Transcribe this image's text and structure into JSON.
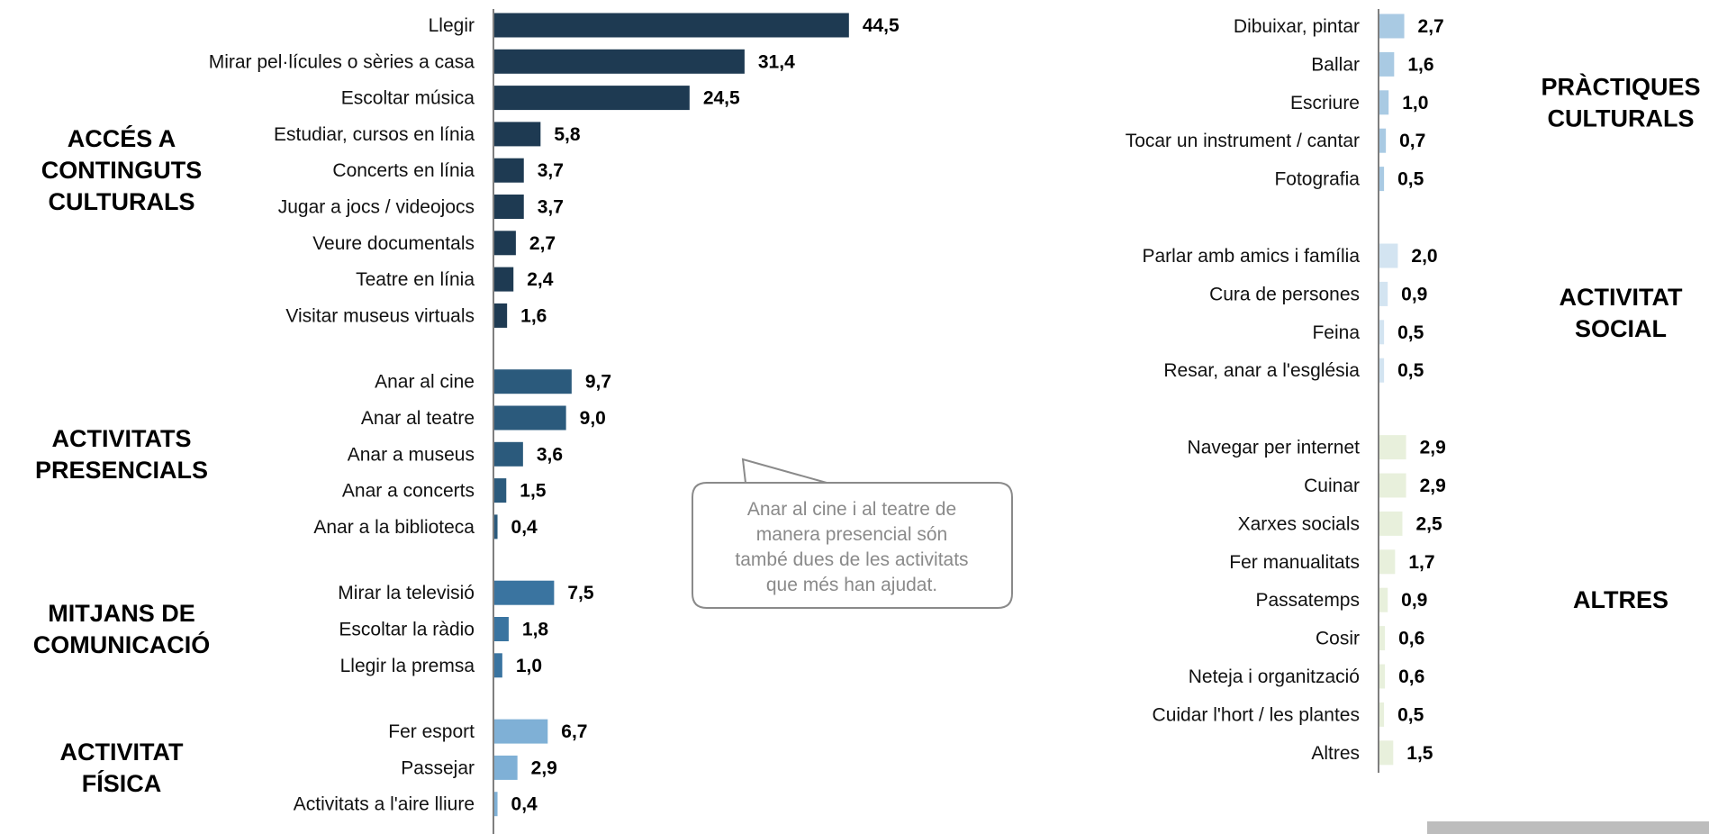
{
  "chart_data": [
    {
      "type": "bar",
      "orientation": "horizontal",
      "groups": [
        {
          "title": [
            "ACCÉS A",
            "CONTINGUTS",
            "CULTURALS"
          ],
          "color": "#1e3a52",
          "categories": [
            "Llegir",
            "Mirar pel·lícules o sèries a casa",
            "Escoltar música",
            "Estudiar, cursos en línia",
            "Concerts en línia",
            "Jugar a jocs / videojocs",
            "Veure documentals",
            "Teatre en línia",
            "Visitar museus virtuals"
          ],
          "values": [
            44.5,
            31.4,
            24.5,
            5.8,
            3.7,
            3.7,
            2.7,
            2.4,
            1.6
          ],
          "value_labels": [
            "44,5",
            "31,4",
            "24,5",
            "5,8",
            "3,7",
            "3,7",
            "2,7",
            "2,4",
            "1,6"
          ]
        },
        {
          "title": [
            "ACTIVITATS",
            "PRESENCIALS"
          ],
          "color": "#2b5a7c",
          "categories": [
            "Anar al cine",
            "Anar al teatre",
            "Anar a museus",
            "Anar a concerts",
            "Anar a la biblioteca"
          ],
          "values": [
            9.7,
            9.0,
            3.6,
            1.5,
            0.4
          ],
          "value_labels": [
            "9,7",
            "9,0",
            "3,6",
            "1,5",
            "0,4"
          ]
        },
        {
          "title": [
            "MITJANS DE",
            "COMUNICACIÓ"
          ],
          "color": "#3a74a0",
          "categories": [
            "Mirar la televisió",
            "Escoltar la ràdio",
            "Llegir la premsa"
          ],
          "values": [
            7.5,
            1.8,
            1.0
          ],
          "value_labels": [
            "7,5",
            "1,8",
            "1,0"
          ]
        },
        {
          "title": [
            "ACTIVITAT",
            "FÍSICA"
          ],
          "color": "#7fb0d6",
          "categories": [
            "Fer esport",
            "Passejar",
            "Activitats a l'aire lliure"
          ],
          "values": [
            6.7,
            2.9,
            0.4
          ],
          "value_labels": [
            "6,7",
            "2,9",
            "0,4"
          ]
        }
      ]
    },
    {
      "type": "bar",
      "orientation": "horizontal",
      "groups": [
        {
          "title": [
            "PRÀCTIQUES",
            "CULTURALS"
          ],
          "color": "#a9cae3",
          "categories": [
            "Dibuixar, pintar",
            "Ballar",
            "Escriure",
            "Tocar un instrument / cantar",
            "Fotografia"
          ],
          "values": [
            2.7,
            1.6,
            1.0,
            0.7,
            0.5
          ],
          "value_labels": [
            "2,7",
            "1,6",
            "1,0",
            "0,7",
            "0,5"
          ]
        },
        {
          "title": [
            "ACTIVITAT",
            "SOCIAL"
          ],
          "color": "#d3e4f1",
          "categories": [
            "Parlar amb amics i família",
            "Cura de persones",
            "Feina",
            "Resar, anar a l'església"
          ],
          "values": [
            2.0,
            0.9,
            0.5,
            0.5
          ],
          "value_labels": [
            "2,0",
            "0,9",
            "0,5",
            "0,5"
          ]
        },
        {
          "title": [
            "ALTRES"
          ],
          "color": "#e8f0dc",
          "categories": [
            "Navegar per internet",
            "Cuinar",
            "Xarxes socials",
            "Fer manualitats",
            "Passatemps",
            "Cosir",
            "Neteja i organització",
            "Cuidar l'hort / les plantes",
            "Altres"
          ],
          "values": [
            2.9,
            2.9,
            2.5,
            1.7,
            0.9,
            0.6,
            0.6,
            0.5,
            1.5
          ],
          "value_labels": [
            "2,9",
            "2,9",
            "2,5",
            "1,7",
            "0,9",
            "0,6",
            "0,6",
            "0,5",
            "1,5"
          ]
        }
      ]
    }
  ],
  "callout": {
    "lines": [
      "Anar al cine i al teatre de",
      "manera presencial són",
      "també dues de les activitats",
      "que més han ajudat."
    ]
  }
}
